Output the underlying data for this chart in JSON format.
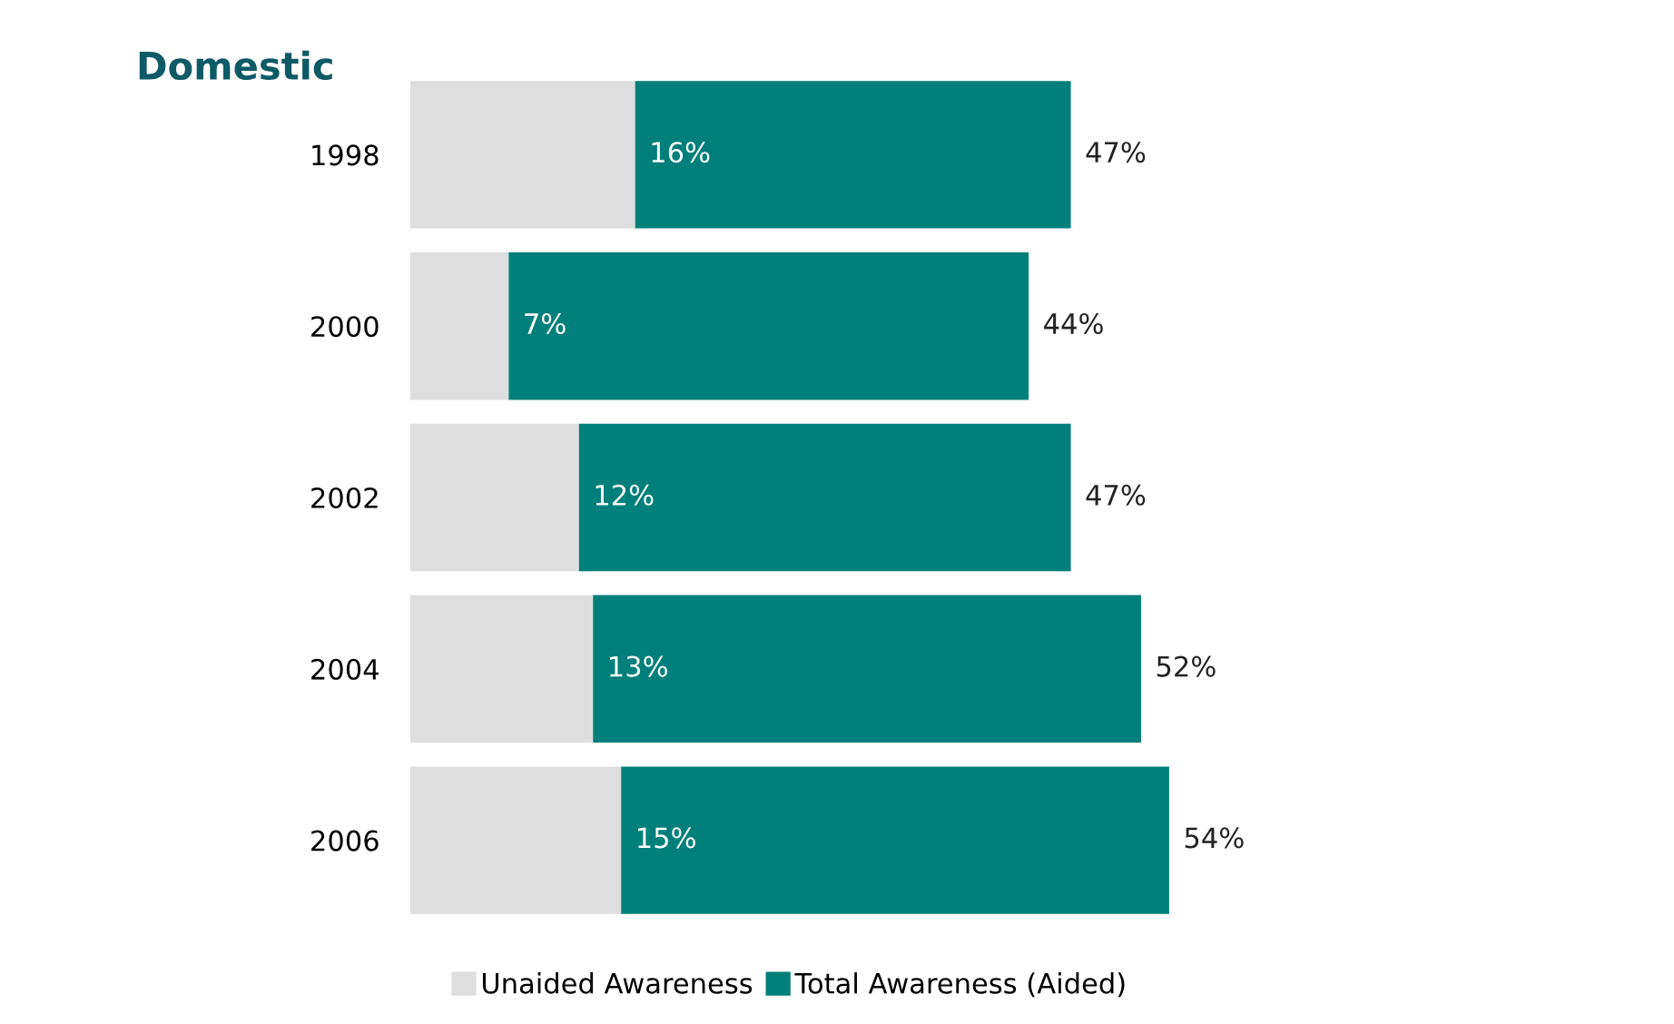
{
  "chart_data": {
    "type": "bar",
    "title": "Domestic",
    "orientation": "horizontal",
    "stacked": true,
    "categories": [
      "1998",
      "2000",
      "2002",
      "2004",
      "2006"
    ],
    "series": [
      {
        "name": "Unaided Awareness",
        "color": "#dedede",
        "values": [
          16,
          7,
          12,
          13,
          15
        ],
        "value_labels": [
          "16%",
          "7%",
          "12%",
          "13%",
          "15%"
        ]
      },
      {
        "name": "Total Awareness (Aided)",
        "color": "#007f7b",
        "values": [
          31,
          37,
          35,
          39,
          39
        ]
      }
    ],
    "totals": [
      "47%",
      "44%",
      "47%",
      "52%",
      "54%"
    ],
    "tick_labels": "y",
    "grid": false,
    "legend": "bottom"
  }
}
